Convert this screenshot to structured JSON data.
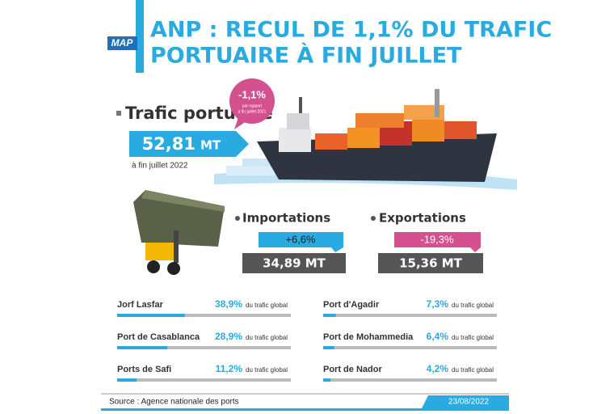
{
  "header": {
    "logo": "MAP",
    "title_lines": [
      "ANP : RECUL DE 1,1% DU TRAFIC",
      "PORTUAIRE À FIN JUILLET"
    ]
  },
  "traffic": {
    "label": "Trafic portuaire",
    "value": "52,81",
    "unit": "MT",
    "date": "à fin juillet 2022",
    "change": "-1,1%",
    "change_note": [
      "par rapport",
      "à fin juillet 2021"
    ]
  },
  "imports": {
    "label": "Importations",
    "change": "+6,6%",
    "value": "34,89 MT"
  },
  "exports": {
    "label": "Exportations",
    "change": "-19,3%",
    "value": "15,36 MT"
  },
  "ports": {
    "xlim": [
      0,
      100
    ],
    "items": [
      {
        "name": "Jorf Lasfar",
        "share": 38.9,
        "share_label": "38,9%",
        "suffix": "du trafic global"
      },
      {
        "name": "Port de Casablanca",
        "share": 28.9,
        "share_label": "28,9%",
        "suffix": "du trafic global"
      },
      {
        "name": "Ports de Safi",
        "share": 11.2,
        "share_label": "11,2%",
        "suffix": "du trafic global"
      },
      {
        "name": "Port d'Agadir",
        "share": 7.3,
        "share_label": "7,3%",
        "suffix": "du trafic global"
      },
      {
        "name": "Port de Mohammedia",
        "share": 6.4,
        "share_label": "6,4%",
        "suffix": "du trafic global"
      },
      {
        "name": "Port de Nador",
        "share": 4.2,
        "share_label": "4,2%",
        "suffix": "du trafic global"
      }
    ]
  },
  "footer": {
    "source": "Source : Agence nationale des ports",
    "date": "23/08/2022"
  }
}
